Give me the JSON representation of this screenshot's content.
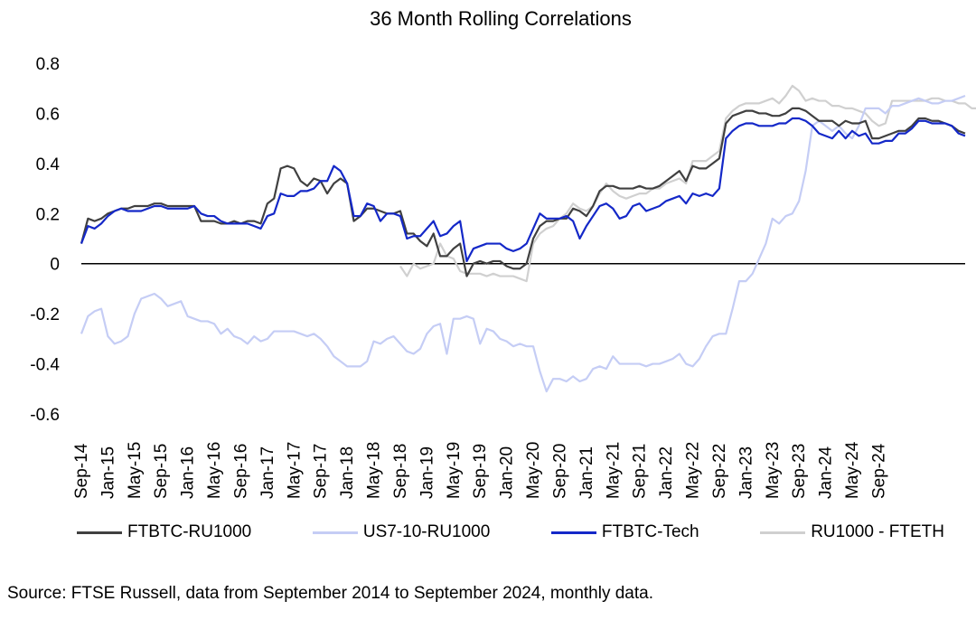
{
  "source": "Source: FTSE Russell, data from September 2014 to September 2024, monthly data.",
  "chart_data": {
    "type": "line",
    "title": "36 Month Rolling Correlations",
    "xlabel": "",
    "ylabel": "",
    "ylim": [
      -0.6,
      0.8
    ],
    "yticks": [
      -0.6,
      -0.4,
      -0.2,
      0,
      0.2,
      0.4,
      0.6,
      0.8
    ],
    "ytick_labels": [
      "-0.6",
      "-0.4",
      "-0.2",
      "0",
      "0.2",
      "0.4",
      "0.6",
      "0.8"
    ],
    "xtick_labels": [
      "Sep-14",
      "Jan-15",
      "May-15",
      "Sep-15",
      "Jan-16",
      "May-16",
      "Sep-16",
      "Jan-17",
      "May-17",
      "Sep-17",
      "Jan-18",
      "May-18",
      "Sep-18",
      "Jan-19",
      "May-19",
      "Sep-19",
      "Jan-20",
      "May-20",
      "Sep-20",
      "Jan-21",
      "May-21",
      "Sep-21",
      "Jan-22",
      "May-22",
      "Sep-22",
      "Jan-23",
      "May-23",
      "Sep-23",
      "Jan-24",
      "May-24",
      "Sep-24"
    ],
    "grid": false,
    "legend_position": "bottom",
    "x_start": "Sep-14",
    "x_frequency": "monthly",
    "series": [
      {
        "name": "FTBTC-RU1000",
        "color": "#404040",
        "values": [
          0.08,
          0.18,
          0.17,
          0.18,
          0.2,
          0.21,
          0.22,
          0.22,
          0.23,
          0.23,
          0.23,
          0.24,
          0.24,
          0.23,
          0.23,
          0.23,
          0.23,
          0.23,
          0.17,
          0.17,
          0.17,
          0.16,
          0.16,
          0.17,
          0.16,
          0.17,
          0.17,
          0.16,
          0.24,
          0.26,
          0.38,
          0.39,
          0.38,
          0.33,
          0.31,
          0.34,
          0.33,
          0.28,
          0.32,
          0.34,
          0.32,
          0.17,
          0.19,
          0.22,
          0.22,
          0.21,
          0.2,
          0.2,
          0.21,
          0.12,
          0.12,
          0.09,
          0.07,
          0.12,
          0.03,
          0.03,
          0.06,
          0.08,
          -0.05,
          0.0,
          0.01,
          0.0,
          0.01,
          0.01,
          -0.01,
          -0.02,
          -0.02,
          0.0,
          0.1,
          0.15,
          0.17,
          0.17,
          0.18,
          0.18,
          0.22,
          0.21,
          0.19,
          0.23,
          0.29,
          0.31,
          0.31,
          0.3,
          0.3,
          0.3,
          0.31,
          0.3,
          0.3,
          0.31,
          0.33,
          0.35,
          0.37,
          0.33,
          0.39,
          0.38,
          0.38,
          0.4,
          0.42,
          0.56,
          0.59,
          0.6,
          0.61,
          0.61,
          0.6,
          0.6,
          0.59,
          0.59,
          0.6,
          0.62,
          0.62,
          0.61,
          0.59,
          0.57,
          0.57,
          0.57,
          0.55,
          0.57,
          0.56,
          0.56,
          0.57,
          0.5,
          0.5,
          0.51,
          0.52,
          0.53,
          0.53,
          0.55,
          0.58,
          0.58,
          0.57,
          0.57,
          0.56,
          0.55,
          0.53,
          0.52
        ]
      },
      {
        "name": "US7-10-RU1000",
        "color": "#c5cdf5",
        "values": [
          -0.28,
          -0.21,
          -0.19,
          -0.18,
          -0.29,
          -0.32,
          -0.31,
          -0.29,
          -0.2,
          -0.14,
          -0.13,
          -0.12,
          -0.14,
          -0.17,
          -0.16,
          -0.15,
          -0.21,
          -0.22,
          -0.23,
          -0.23,
          -0.24,
          -0.28,
          -0.26,
          -0.29,
          -0.3,
          -0.32,
          -0.29,
          -0.31,
          -0.3,
          -0.27,
          -0.27,
          -0.27,
          -0.27,
          -0.28,
          -0.29,
          -0.28,
          -0.3,
          -0.33,
          -0.37,
          -0.39,
          -0.41,
          -0.41,
          -0.41,
          -0.39,
          -0.31,
          -0.32,
          -0.3,
          -0.29,
          -0.32,
          -0.35,
          -0.36,
          -0.34,
          -0.28,
          -0.25,
          -0.24,
          -0.36,
          -0.22,
          -0.22,
          -0.21,
          -0.22,
          -0.32,
          -0.26,
          -0.27,
          -0.3,
          -0.31,
          -0.33,
          -0.32,
          -0.33,
          -0.33,
          -0.43,
          -0.51,
          -0.46,
          -0.46,
          -0.47,
          -0.45,
          -0.47,
          -0.46,
          -0.42,
          -0.41,
          -0.42,
          -0.37,
          -0.4,
          -0.4,
          -0.4,
          -0.4,
          -0.41,
          -0.4,
          -0.4,
          -0.39,
          -0.38,
          -0.36,
          -0.4,
          -0.41,
          -0.38,
          -0.33,
          -0.29,
          -0.28,
          -0.28,
          -0.18,
          -0.07,
          -0.07,
          -0.04,
          0.02,
          0.08,
          0.18,
          0.16,
          0.19,
          0.2,
          0.25,
          0.37,
          0.55,
          0.57,
          0.55,
          0.53,
          0.55,
          0.52,
          0.5,
          0.55,
          0.62,
          0.62,
          0.62,
          0.6,
          0.63,
          0.63,
          0.64,
          0.65,
          0.66,
          0.65,
          0.64,
          0.64,
          0.65,
          0.65,
          0.66,
          0.67
        ]
      },
      {
        "name": "FTBTC-Tech",
        "color": "#1428c8",
        "values": [
          0.08,
          0.15,
          0.14,
          0.16,
          0.19,
          0.21,
          0.22,
          0.21,
          0.21,
          0.21,
          0.22,
          0.23,
          0.23,
          0.22,
          0.22,
          0.22,
          0.22,
          0.23,
          0.2,
          0.19,
          0.19,
          0.17,
          0.16,
          0.16,
          0.16,
          0.16,
          0.15,
          0.14,
          0.19,
          0.2,
          0.28,
          0.27,
          0.27,
          0.29,
          0.29,
          0.3,
          0.33,
          0.33,
          0.39,
          0.37,
          0.32,
          0.19,
          0.19,
          0.24,
          0.23,
          0.17,
          0.2,
          0.2,
          0.19,
          0.1,
          0.11,
          0.11,
          0.14,
          0.17,
          0.11,
          0.12,
          0.15,
          0.17,
          0.01,
          0.06,
          0.07,
          0.08,
          0.08,
          0.08,
          0.06,
          0.05,
          0.06,
          0.08,
          0.14,
          0.2,
          0.18,
          0.18,
          0.18,
          0.19,
          0.17,
          0.1,
          0.15,
          0.19,
          0.23,
          0.24,
          0.22,
          0.18,
          0.19,
          0.23,
          0.24,
          0.21,
          0.22,
          0.23,
          0.25,
          0.26,
          0.27,
          0.24,
          0.28,
          0.27,
          0.28,
          0.27,
          0.3,
          0.5,
          0.53,
          0.55,
          0.56,
          0.56,
          0.55,
          0.55,
          0.55,
          0.56,
          0.56,
          0.58,
          0.58,
          0.57,
          0.55,
          0.52,
          0.51,
          0.5,
          0.53,
          0.5,
          0.53,
          0.51,
          0.52,
          0.48,
          0.48,
          0.49,
          0.49,
          0.52,
          0.52,
          0.54,
          0.57,
          0.57,
          0.56,
          0.56,
          0.56,
          0.55,
          0.52,
          0.51
        ]
      },
      {
        "name": "RU1000 - FTETH",
        "color": "#d0d0d0",
        "values": [
          null,
          null,
          null,
          null,
          null,
          null,
          null,
          null,
          null,
          null,
          null,
          null,
          null,
          null,
          null,
          null,
          null,
          null,
          null,
          null,
          null,
          null,
          null,
          null,
          null,
          null,
          null,
          null,
          null,
          null,
          null,
          null,
          null,
          null,
          null,
          null,
          null,
          null,
          null,
          null,
          null,
          null,
          null,
          null,
          null,
          null,
          null,
          null,
          -0.01,
          -0.05,
          0.0,
          -0.02,
          -0.01,
          0.0,
          0.08,
          0.03,
          0.02,
          -0.03,
          -0.04,
          -0.04,
          -0.04,
          -0.05,
          -0.04,
          -0.05,
          -0.05,
          -0.05,
          -0.06,
          -0.07,
          0.08,
          0.12,
          0.14,
          0.15,
          0.18,
          0.2,
          0.24,
          0.22,
          0.21,
          0.23,
          0.28,
          0.32,
          0.29,
          0.27,
          0.26,
          0.27,
          0.28,
          0.28,
          0.3,
          0.3,
          0.32,
          0.33,
          0.34,
          0.32,
          0.41,
          0.41,
          0.41,
          0.43,
          0.45,
          0.58,
          0.61,
          0.63,
          0.64,
          0.64,
          0.64,
          0.65,
          0.66,
          0.64,
          0.67,
          0.71,
          0.69,
          0.65,
          0.66,
          0.65,
          0.65,
          0.63,
          0.63,
          0.62,
          0.62,
          0.61,
          0.6,
          0.57,
          0.55,
          0.56,
          0.65,
          0.65,
          0.65,
          0.65,
          0.65,
          0.65,
          0.66,
          0.66,
          0.65,
          0.65,
          0.64,
          0.64,
          0.62,
          0.62
        ]
      }
    ]
  }
}
